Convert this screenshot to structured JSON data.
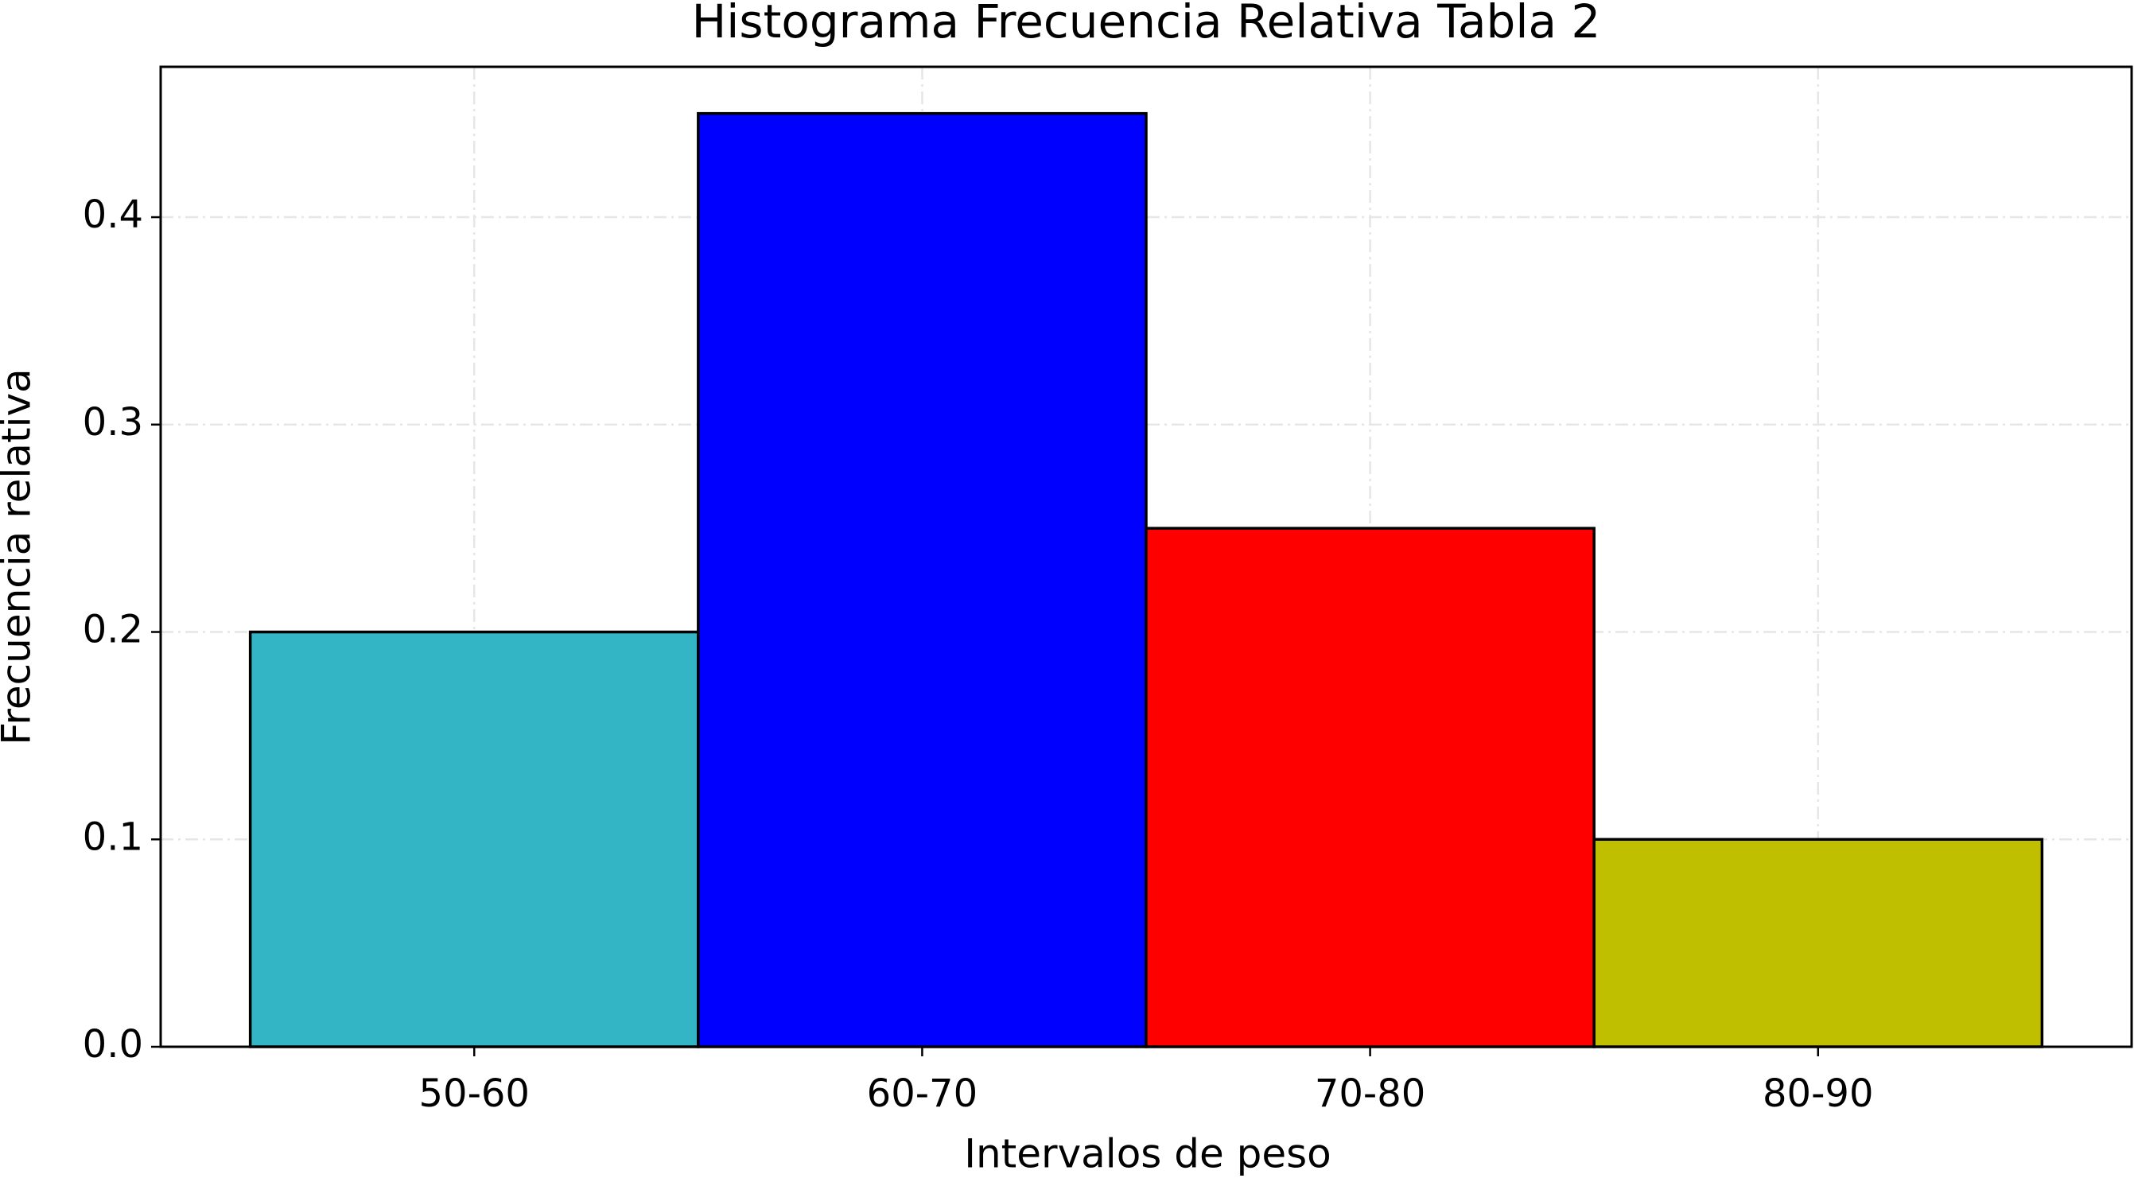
{
  "chart_data": {
    "type": "bar",
    "title": "Histograma Frecuencia Relativa Tabla 2",
    "xlabel": "Intervalos de peso",
    "ylabel": "Frecuencia relativa",
    "categories": [
      "50-60",
      "60-70",
      "70-80",
      "80-90"
    ],
    "values": [
      0.2,
      0.45,
      0.25,
      0.1
    ],
    "colors": [
      "#33b5c5",
      "#0000ff",
      "#ff0000",
      "#bfbf00"
    ],
    "edgecolor": "#000000",
    "ylim": [
      0,
      0.4725
    ],
    "yticks": [
      {
        "value": 0,
        "label": "0.0"
      },
      0.1,
      0.2,
      0.3,
      0.4
    ],
    "grid": true
  }
}
